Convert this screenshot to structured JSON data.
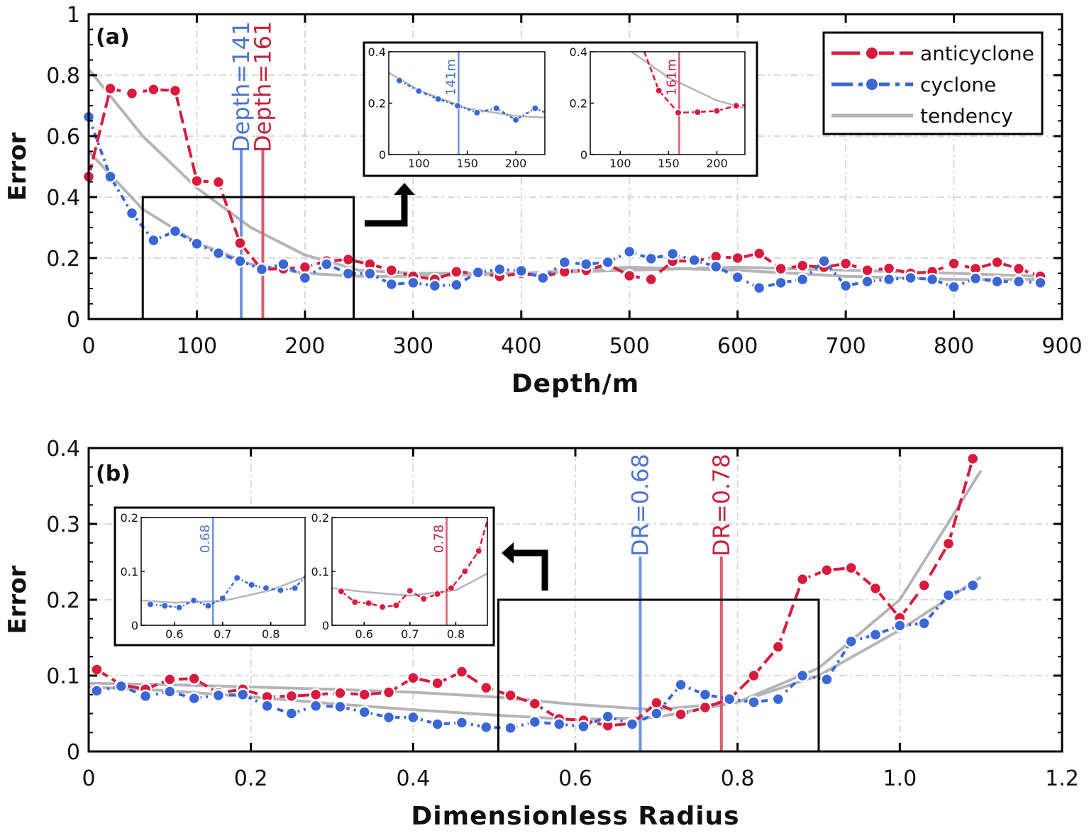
{
  "colors": {
    "anticyclone": "#d81b3c",
    "cyclone": "#3a66d6",
    "tendency": "#b3b5b9",
    "vline_cyclone": "#6f94dc",
    "vline_anticyclone": "#de5a6f"
  },
  "legend": {
    "anticyclone": "anticyclone",
    "cyclone": "cyclone",
    "tendency": "tendency"
  },
  "chart_data": [
    {
      "type": "line",
      "panel_label": "(a)",
      "xlabel": "Depth/m",
      "ylabel": "Error",
      "xlim": [
        0,
        900
      ],
      "ylim": [
        0,
        1
      ],
      "xticks": [
        0,
        100,
        200,
        300,
        400,
        500,
        600,
        700,
        800,
        900
      ],
      "xtick_labels": [
        "0",
        "100",
        "200",
        "300",
        "400",
        "500",
        "600",
        "700",
        "800",
        "900"
      ],
      "yticks": [
        0,
        0.2,
        0.4,
        0.6,
        0.8,
        1
      ],
      "ytick_labels": [
        "0",
        "0.2",
        "0.4",
        "0.6",
        "0.8",
        "1"
      ],
      "grid": true,
      "legend_position": "top-right",
      "x": [
        0,
        20,
        40,
        60,
        80,
        100,
        120,
        140,
        160,
        180,
        200,
        220,
        240,
        260,
        280,
        300,
        320,
        340,
        360,
        380,
        400,
        420,
        440,
        460,
        480,
        500,
        520,
        540,
        560,
        580,
        600,
        620,
        640,
        660,
        680,
        700,
        720,
        740,
        760,
        780,
        800,
        820,
        840,
        860,
        880
      ],
      "series": [
        {
          "name": "anticyclone",
          "values": [
            0.467,
            0.756,
            0.74,
            0.753,
            0.749,
            0.453,
            0.449,
            0.249,
            0.163,
            0.165,
            0.17,
            0.19,
            0.195,
            0.18,
            0.16,
            0.14,
            0.13,
            0.155,
            0.15,
            0.14,
            0.15,
            0.14,
            0.155,
            0.16,
            0.18,
            0.142,
            0.13,
            0.19,
            0.19,
            0.205,
            0.2,
            0.215,
            0.165,
            0.175,
            0.17,
            0.182,
            0.16,
            0.166,
            0.15,
            0.155,
            0.182,
            0.165,
            0.186,
            0.165,
            0.14
          ]
        },
        {
          "name": "cyclone",
          "values": [
            0.663,
            0.467,
            0.347,
            0.258,
            0.288,
            0.247,
            0.216,
            0.19,
            0.163,
            0.18,
            0.135,
            0.18,
            0.149,
            0.149,
            0.114,
            0.119,
            0.109,
            0.112,
            0.153,
            0.163,
            0.158,
            0.135,
            0.186,
            0.18,
            0.186,
            0.221,
            0.198,
            0.214,
            0.193,
            0.172,
            0.137,
            0.102,
            0.119,
            0.13,
            0.19,
            0.109,
            0.123,
            0.13,
            0.135,
            0.13,
            0.105,
            0.133,
            0.123,
            0.123,
            0.119
          ]
        }
      ],
      "tendency": {
        "x": [
          0,
          50,
          100,
          150,
          200,
          250,
          300,
          400,
          500,
          600,
          700,
          800,
          880
        ],
        "anticyclone": [
          0.82,
          0.6,
          0.43,
          0.3,
          0.21,
          0.16,
          0.15,
          0.15,
          0.16,
          0.17,
          0.16,
          0.15,
          0.14
        ],
        "cyclone": [
          0.55,
          0.36,
          0.25,
          0.18,
          0.15,
          0.14,
          0.14,
          0.15,
          0.17,
          0.16,
          0.14,
          0.13,
          0.13
        ]
      },
      "markers": [
        {
          "series": "cyclone",
          "x": 141,
          "label": "Depth=141",
          "inset_label": "141m"
        },
        {
          "series": "anticyclone",
          "x": 161,
          "label": "Depth=161",
          "inset_label": "161m"
        }
      ],
      "zoom_region": {
        "x": [
          50,
          245
        ],
        "y": [
          0,
          0.4
        ]
      },
      "insets": [
        {
          "series": "cyclone",
          "xlim": [
            69,
            230
          ],
          "ylim": [
            0,
            0.4
          ],
          "xticks": [
            100,
            150,
            200
          ],
          "xtick_labels": [
            "100",
            "150",
            "200"
          ],
          "yticks": [
            0,
            0.2,
            0.4
          ],
          "ytick_labels": [
            "0",
            "0.2",
            "0.4"
          ]
        },
        {
          "series": "anticyclone",
          "xlim": [
            69,
            229
          ],
          "ylim": [
            0,
            0.4
          ],
          "xticks": [
            100,
            150,
            200
          ],
          "xtick_labels": [
            "100",
            "150",
            "200"
          ],
          "yticks": [
            0,
            0.2,
            0.4
          ],
          "ytick_labels": [
            "0",
            "0.2",
            "0.4"
          ]
        }
      ]
    },
    {
      "type": "line",
      "panel_label": "(b)",
      "xlabel": "Dimensionless Radius",
      "ylabel": "Error",
      "xlim": [
        0,
        1.2
      ],
      "ylim": [
        0,
        0.4
      ],
      "xticks": [
        0,
        0.2,
        0.4,
        0.6,
        0.8,
        1.0,
        1.2
      ],
      "xtick_labels": [
        "0",
        "0.2",
        "0.4",
        "0.6",
        "0.8",
        "1.0",
        "1.2"
      ],
      "yticks": [
        0,
        0.1,
        0.2,
        0.3,
        0.4
      ],
      "ytick_labels": [
        "0",
        "0.1",
        "0.2",
        "0.3",
        "0.4"
      ],
      "grid": true,
      "x": [
        0.01,
        0.04,
        0.07,
        0.1,
        0.13,
        0.16,
        0.19,
        0.22,
        0.25,
        0.28,
        0.31,
        0.34,
        0.37,
        0.4,
        0.43,
        0.46,
        0.49,
        0.52,
        0.55,
        0.58,
        0.61,
        0.64,
        0.67,
        0.7,
        0.73,
        0.76,
        0.79,
        0.82,
        0.85,
        0.88,
        0.91,
        0.94,
        0.97,
        1.0,
        1.03,
        1.06,
        1.09
      ],
      "series": [
        {
          "name": "anticyclone",
          "values": [
            0.108,
            0.088,
            0.082,
            0.095,
            0.096,
            0.077,
            0.082,
            0.072,
            0.073,
            0.075,
            0.077,
            0.075,
            0.078,
            0.097,
            0.09,
            0.105,
            0.084,
            0.074,
            0.063,
            0.043,
            0.041,
            0.034,
            0.037,
            0.064,
            0.049,
            0.058,
            0.069,
            0.1,
            0.138,
            0.227,
            0.239,
            0.242,
            0.215,
            0.176,
            0.219,
            0.274,
            0.386
          ]
        },
        {
          "name": "cyclone",
          "values": [
            0.08,
            0.086,
            0.073,
            0.079,
            0.07,
            0.074,
            0.075,
            0.06,
            0.05,
            0.06,
            0.059,
            0.052,
            0.045,
            0.045,
            0.036,
            0.038,
            0.032,
            0.031,
            0.039,
            0.036,
            0.033,
            0.046,
            0.036,
            0.05,
            0.088,
            0.075,
            0.069,
            0.065,
            0.069,
            0.1,
            0.095,
            0.145,
            0.154,
            0.166,
            0.169,
            0.206,
            0.219
          ]
        }
      ],
      "tendency": {
        "x": [
          0,
          0.1,
          0.2,
          0.3,
          0.4,
          0.5,
          0.6,
          0.7,
          0.8,
          0.9,
          1.0,
          1.1
        ],
        "anticyclone": [
          0.09,
          0.088,
          0.085,
          0.082,
          0.078,
          0.072,
          0.062,
          0.055,
          0.065,
          0.11,
          0.2,
          0.37
        ],
        "cyclone": [
          0.085,
          0.08,
          0.072,
          0.063,
          0.055,
          0.048,
          0.042,
          0.045,
          0.065,
          0.1,
          0.16,
          0.23
        ]
      },
      "markers": [
        {
          "series": "cyclone",
          "x": 0.68,
          "label": "DR=0.68",
          "inset_label": "0.68"
        },
        {
          "series": "anticyclone",
          "x": 0.78,
          "label": "DR=0.78",
          "inset_label": "0.78"
        }
      ],
      "zoom_region": {
        "x": [
          0.505,
          0.9
        ],
        "y": [
          0,
          0.2
        ]
      },
      "insets": [
        {
          "series": "cyclone",
          "xlim": [
            0.531,
            0.871
          ],
          "ylim": [
            0,
            0.2
          ],
          "xticks": [
            0.6,
            0.7,
            0.8
          ],
          "xtick_labels": [
            "0.6",
            "0.7",
            "0.8"
          ],
          "yticks": [
            0,
            0.1,
            0.2
          ],
          "ytick_labels": [
            "0",
            "0.1",
            "0.2"
          ]
        },
        {
          "series": "anticyclone",
          "xlim": [
            0.53,
            0.869
          ],
          "ylim": [
            0,
            0.2
          ],
          "xticks": [
            0.6,
            0.7,
            0.8
          ],
          "xtick_labels": [
            "0.6",
            "0.7",
            "0.8"
          ],
          "yticks": [
            0,
            0.1,
            0.2
          ],
          "ytick_labels": [
            "0",
            "0.1",
            "0.2"
          ]
        }
      ]
    }
  ]
}
